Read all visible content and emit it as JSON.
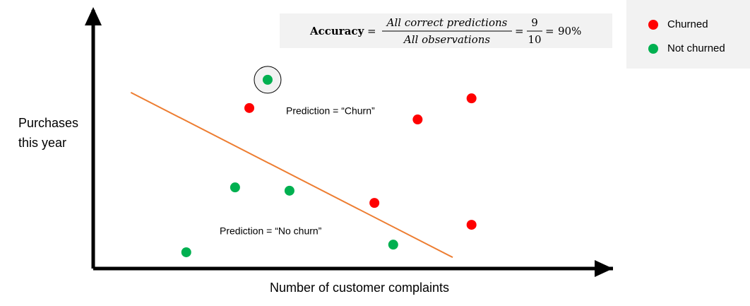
{
  "chart_data": {
    "type": "scatter",
    "xlabel": "Number of customer complaints",
    "ylabel": [
      "Purchases",
      "this year"
    ],
    "xlim": [
      0,
      10
    ],
    "ylim": [
      0,
      10
    ],
    "series": [
      {
        "name": "Churned",
        "color": "#ff0000",
        "x": [
          3.07,
          6.38,
          7.44,
          5.53,
          7.44
        ],
        "values": [
          6.31,
          5.86,
          6.69,
          2.58,
          1.72
        ]
      },
      {
        "name": "Not churned",
        "color": "#00b050",
        "x": [
          3.43,
          2.79,
          3.86,
          1.83,
          5.9
        ],
        "values": [
          7.42,
          3.19,
          3.06,
          0.64,
          0.94
        ]
      }
    ],
    "highlight": {
      "series": 1,
      "index": 0
    },
    "line": {
      "color": "#ed7d31",
      "x": [
        0.74,
        7.07
      ],
      "values": [
        6.92,
        0.44
      ]
    },
    "annotations": [
      "Prediction = “Churn”",
      "Prediction = “No churn”"
    ],
    "formula": {
      "label": "Accuracy",
      "equals": "=",
      "numerator": "All correct predictions",
      "denominator": "All observations",
      "count_correct": 9,
      "count_total": 10,
      "result": "90%"
    },
    "legend": "top-right"
  }
}
